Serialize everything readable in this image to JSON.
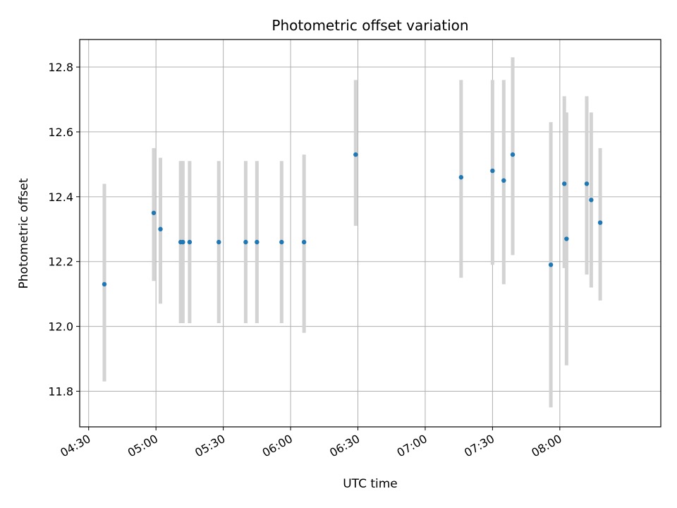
{
  "chart_data": {
    "type": "scatter",
    "title": "Photometric offset variation",
    "xlabel": "UTC time",
    "ylabel": "Photometric offset",
    "xlim": [
      "04:26",
      "08:45"
    ],
    "ylim": [
      11.69,
      12.885
    ],
    "x_ticks": [
      "04:30",
      "05:00",
      "05:30",
      "06:00",
      "06:30",
      "07:00",
      "07:30",
      "08:00"
    ],
    "y_ticks": [
      11.8,
      12.0,
      12.2,
      12.4,
      12.6,
      12.8
    ],
    "grid": true,
    "point_color": "#1f77b4",
    "errorbar_color": "#d3d3d3",
    "points": [
      {
        "x": "04:37",
        "y": 12.13,
        "low": 11.83,
        "high": 12.44
      },
      {
        "x": "04:59",
        "y": 12.35,
        "low": 12.14,
        "high": 12.55
      },
      {
        "x": "05:02",
        "y": 12.3,
        "low": 12.07,
        "high": 12.52
      },
      {
        "x": "05:11",
        "y": 12.26,
        "low": 12.01,
        "high": 12.51
      },
      {
        "x": "05:12",
        "y": 12.26,
        "low": 12.01,
        "high": 12.51
      },
      {
        "x": "05:15",
        "y": 12.26,
        "low": 12.01,
        "high": 12.51
      },
      {
        "x": "05:28",
        "y": 12.26,
        "low": 12.01,
        "high": 12.51
      },
      {
        "x": "05:40",
        "y": 12.26,
        "low": 12.01,
        "high": 12.51
      },
      {
        "x": "05:45",
        "y": 12.26,
        "low": 12.01,
        "high": 12.51
      },
      {
        "x": "05:56",
        "y": 12.26,
        "low": 12.01,
        "high": 12.51
      },
      {
        "x": "06:06",
        "y": 12.26,
        "low": 11.98,
        "high": 12.53
      },
      {
        "x": "06:29",
        "y": 12.53,
        "low": 12.31,
        "high": 12.76
      },
      {
        "x": "07:16",
        "y": 12.46,
        "low": 12.15,
        "high": 12.76
      },
      {
        "x": "07:30",
        "y": 12.48,
        "low": 12.19,
        "high": 12.76
      },
      {
        "x": "07:35",
        "y": 12.45,
        "low": 12.13,
        "high": 12.76
      },
      {
        "x": "07:39",
        "y": 12.53,
        "low": 12.22,
        "high": 12.83
      },
      {
        "x": "07:56",
        "y": 12.19,
        "low": 11.75,
        "high": 12.63
      },
      {
        "x": "08:02",
        "y": 12.44,
        "low": 12.18,
        "high": 12.71
      },
      {
        "x": "08:03",
        "y": 12.27,
        "low": 11.88,
        "high": 12.66
      },
      {
        "x": "08:12",
        "y": 12.44,
        "low": 12.16,
        "high": 12.71
      },
      {
        "x": "08:14",
        "y": 12.39,
        "low": 12.12,
        "high": 12.66
      },
      {
        "x": "08:18",
        "y": 12.32,
        "low": 12.08,
        "high": 12.55
      }
    ]
  }
}
